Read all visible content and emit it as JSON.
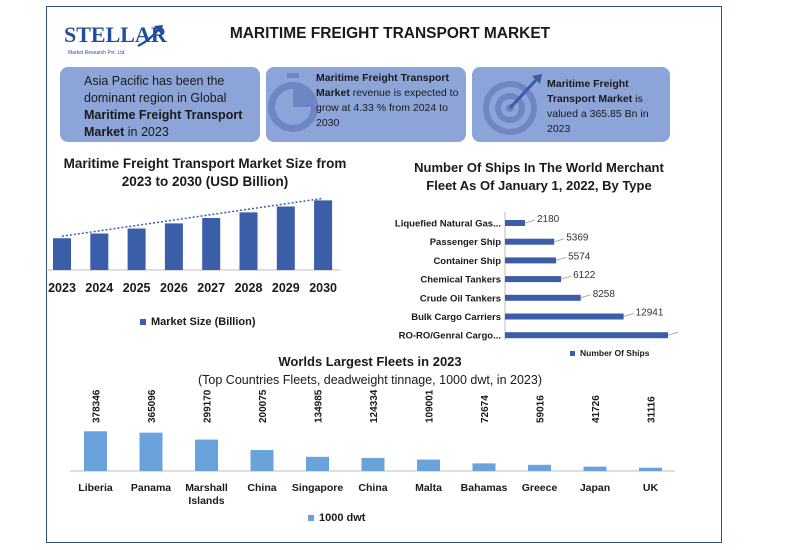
{
  "header": {
    "logo_text": "STELLAR",
    "logo_sub": "Market Research Pvt. Ltd.",
    "title": "MARITIME FREIGHT TRANSPORT MARKET"
  },
  "cards": {
    "card1": {
      "pre": "Asia Pacific has been the dominant region in Global ",
      "bold": "Maritime Freight Transport Market",
      "post": " in 2023"
    },
    "card2": {
      "bold": "Maritime Freight Transport Market",
      "post": " revenue is expected to grow at 4.33 % from 2024 to 2030"
    },
    "card3": {
      "bold": "Maritime Freight Transport Market",
      "post": " is valued a 365.85 Bn in 2023"
    }
  },
  "colors": {
    "bar_dark": "#3a5ea8",
    "bar_light": "#6aa3db",
    "card_bg": "#8da4d9",
    "frame": "#2f4f8f"
  },
  "icons": {
    "card2": "stopwatch-icon",
    "card3": "target-icon"
  },
  "chart_data": [
    {
      "type": "bar",
      "title": "Maritime Freight Transport Market Size from 2023 to 2030 (USD Billion)",
      "categories": [
        "2023",
        "2024",
        "2025",
        "2026",
        "2027",
        "2028",
        "2029",
        "2030"
      ],
      "series": [
        {
          "name": "Market Size (Billion)",
          "values": [
            365.85,
            381.7,
            398.2,
            415.4,
            433.4,
            452.1,
            471.7,
            492.1
          ]
        }
      ],
      "trendline": true,
      "legend_position": "bottom",
      "ylim": [
        0,
        500
      ]
    },
    {
      "type": "bar",
      "orientation": "horizontal",
      "title": "Number Of Ships In The World Merchant Fleet As Of January 1, 2022, By Type",
      "categories": [
        "Liquefied Natural Gas...",
        "Passenger Ship",
        "Container Ship",
        "Chemical Tankers",
        "Crude Oil Tankers",
        "Bulk Cargo Carriers",
        "RO-RO/Genral Cargo..."
      ],
      "series": [
        {
          "name": "Number Of Ships",
          "values": [
            2180,
            5369,
            5574,
            6122,
            8258,
            12941,
            17784
          ]
        }
      ],
      "legend_position": "bottom-right",
      "xlim": [
        0,
        18000
      ]
    },
    {
      "type": "bar",
      "title": "Worlds Largest Fleets in 2023",
      "subtitle": "(Top Countries Fleets, deadweight tinnage, 1000 dwt, in 2023)",
      "categories": [
        "Liberia",
        "Panama",
        "Marshall Islands",
        "China",
        "Singapore",
        "China",
        "Malta",
        "Bahamas",
        "Greece",
        "Japan",
        "UK"
      ],
      "series": [
        {
          "name": "1000 dwt",
          "values": [
            378346,
            365096,
            299170,
            200075,
            134985,
            124334,
            109001,
            72674,
            59016,
            41726,
            31116
          ]
        }
      ],
      "legend_position": "bottom",
      "ylim": [
        0,
        1000000
      ]
    }
  ]
}
